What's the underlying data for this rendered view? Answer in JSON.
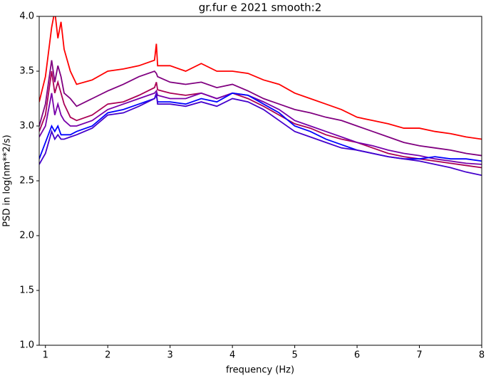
{
  "chart_data": {
    "type": "line",
    "title": "gr.fur e 2021 smooth:2",
    "xlabel": "frequency (Hz)",
    "ylabel": "PSD in log(nm**2/s)",
    "x": [
      0.9,
      1.0,
      1.1,
      1.15,
      1.2,
      1.25,
      1.3,
      1.4,
      1.5,
      1.75,
      2.0,
      2.25,
      2.5,
      2.75,
      2.78,
      2.8,
      3.0,
      3.25,
      3.5,
      3.75,
      4.0,
      4.25,
      4.5,
      4.75,
      5.0,
      5.25,
      5.5,
      5.75,
      6.0,
      6.25,
      6.5,
      6.75,
      7.0,
      7.25,
      7.5,
      7.75,
      8.0
    ],
    "series": [
      {
        "color": "#ff0000",
        "values": [
          3.22,
          3.45,
          3.9,
          4.05,
          3.8,
          3.95,
          3.7,
          3.5,
          3.38,
          3.42,
          3.5,
          3.52,
          3.55,
          3.6,
          3.75,
          3.55,
          3.55,
          3.5,
          3.57,
          3.5,
          3.5,
          3.48,
          3.42,
          3.38,
          3.3,
          3.25,
          3.2,
          3.15,
          3.08,
          3.05,
          3.02,
          2.98,
          2.98,
          2.95,
          2.93,
          2.9,
          2.88
        ]
      },
      {
        "color": "#800080",
        "values": [
          3.0,
          3.2,
          3.6,
          3.4,
          3.55,
          3.45,
          3.3,
          3.25,
          3.18,
          3.25,
          3.32,
          3.38,
          3.45,
          3.5,
          3.48,
          3.45,
          3.4,
          3.38,
          3.4,
          3.35,
          3.38,
          3.32,
          3.25,
          3.2,
          3.15,
          3.12,
          3.08,
          3.05,
          3.0,
          2.95,
          2.9,
          2.85,
          2.82,
          2.8,
          2.78,
          2.75,
          2.73
        ]
      },
      {
        "color": "#aa0055",
        "values": [
          2.95,
          3.1,
          3.5,
          3.3,
          3.4,
          3.3,
          3.2,
          3.08,
          3.05,
          3.1,
          3.2,
          3.22,
          3.28,
          3.35,
          3.4,
          3.33,
          3.3,
          3.28,
          3.3,
          3.25,
          3.3,
          3.25,
          3.18,
          3.1,
          3.02,
          2.98,
          2.92,
          2.88,
          2.85,
          2.8,
          2.75,
          2.72,
          2.7,
          2.68,
          2.66,
          2.64,
          2.62
        ]
      },
      {
        "color": "#7700aa",
        "values": [
          2.9,
          3.0,
          3.3,
          3.1,
          3.2,
          3.1,
          3.05,
          3.0,
          3.0,
          3.05,
          3.15,
          3.2,
          3.25,
          3.3,
          3.32,
          3.28,
          3.25,
          3.25,
          3.3,
          3.25,
          3.3,
          3.28,
          3.22,
          3.15,
          3.05,
          3.0,
          2.95,
          2.9,
          2.85,
          2.82,
          2.78,
          2.75,
          2.73,
          2.7,
          2.68,
          2.66,
          2.65
        ]
      },
      {
        "color": "#0000ff",
        "values": [
          2.7,
          2.85,
          3.0,
          2.95,
          3.0,
          2.92,
          2.92,
          2.92,
          2.95,
          3.0,
          3.12,
          3.15,
          3.2,
          3.25,
          3.28,
          3.22,
          3.22,
          3.2,
          3.25,
          3.22,
          3.3,
          3.28,
          3.2,
          3.12,
          3.0,
          2.95,
          2.88,
          2.83,
          2.78,
          2.75,
          2.72,
          2.7,
          2.7,
          2.72,
          2.7,
          2.7,
          2.68
        ]
      },
      {
        "color": "#4400cc",
        "values": [
          2.65,
          2.75,
          2.95,
          2.88,
          2.92,
          2.88,
          2.88,
          2.9,
          2.92,
          2.98,
          3.1,
          3.12,
          3.18,
          3.25,
          3.3,
          3.2,
          3.2,
          3.18,
          3.22,
          3.18,
          3.25,
          3.22,
          3.15,
          3.05,
          2.95,
          2.9,
          2.85,
          2.8,
          2.78,
          2.75,
          2.72,
          2.7,
          2.68,
          2.65,
          2.62,
          2.58,
          2.55
        ]
      }
    ],
    "xlim": [
      0.9,
      8
    ],
    "xticks": [
      1,
      2,
      3,
      4,
      5,
      6,
      7,
      8
    ],
    "ylim": [
      1.0,
      4.0
    ],
    "yticks": [
      {
        "value": 1.0,
        "label": "1.0"
      },
      {
        "value": 1.5,
        "label": "1.5"
      },
      {
        "value": 2.0,
        "label": "2.0"
      },
      {
        "value": 2.5,
        "label": "2.5"
      },
      {
        "value": 3.0,
        "label": "3.0"
      },
      {
        "value": 3.5,
        "label": "3.5"
      },
      {
        "value": 4.0,
        "label": "4.0"
      }
    ],
    "grid": false
  }
}
